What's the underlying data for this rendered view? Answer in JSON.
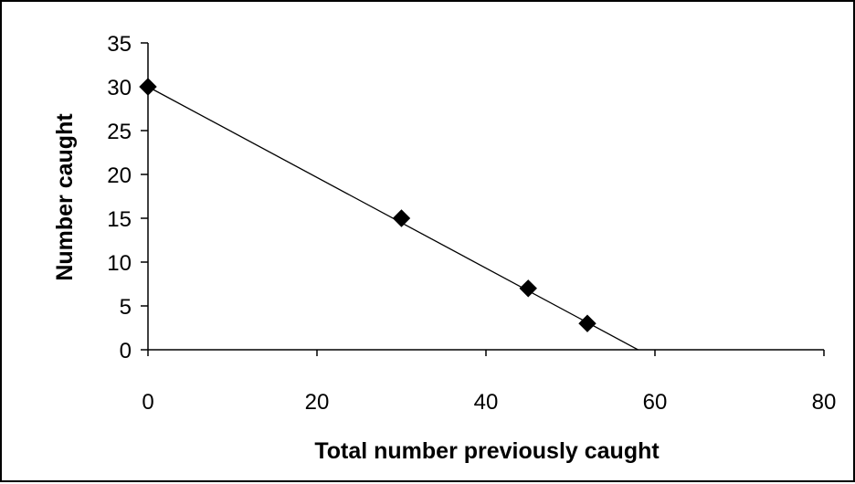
{
  "chart_data": {
    "type": "scatter",
    "title": "",
    "xlabel": "Total number previously caught",
    "ylabel": "Number caught",
    "xlim": [
      0,
      80
    ],
    "ylim": [
      0,
      35
    ],
    "x_ticks": [
      0,
      20,
      40,
      60,
      80
    ],
    "y_ticks": [
      0,
      5,
      10,
      15,
      20,
      25,
      30,
      35
    ],
    "grid": false,
    "legend": "none",
    "series": [
      {
        "marker": "diamond",
        "color": "#000000",
        "points": [
          {
            "x": 0,
            "y": 30
          },
          {
            "x": 30,
            "y": 15
          },
          {
            "x": 45,
            "y": 7
          },
          {
            "x": 52,
            "y": 3
          }
        ]
      }
    ],
    "trendline": {
      "type": "linear",
      "color": "#000000",
      "from": {
        "x": 0,
        "y": 30
      },
      "to": {
        "x": 58,
        "y": 0
      }
    }
  }
}
